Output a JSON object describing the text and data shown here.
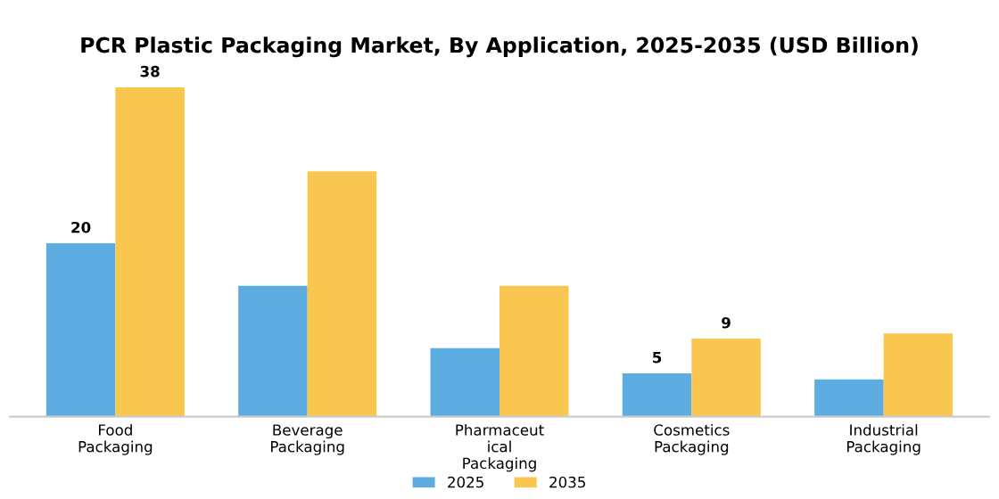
{
  "chart_data": {
    "type": "bar",
    "title": "PCR Plastic Packaging Market, By Application, 2025-2035 (USD Billion)",
    "categories": [
      "Food\nPackaging",
      "Beverage\nPackaging",
      "Pharmaceut\nical\nPackaging",
      "Cosmetics\nPackaging",
      "Industrial\nPackaging"
    ],
    "series": [
      {
        "name": "2025",
        "color": "#5dade2",
        "values": [
          20,
          15.1,
          7.9,
          5,
          4.3
        ],
        "value_labels": [
          "20",
          null,
          null,
          "5",
          null
        ]
      },
      {
        "name": "2035",
        "color": "#f9c74f",
        "values": [
          38,
          28.3,
          15.1,
          9,
          9.6
        ],
        "value_labels": [
          "38",
          null,
          null,
          "9",
          null
        ]
      }
    ],
    "legend": "bottom",
    "grid": false
  }
}
